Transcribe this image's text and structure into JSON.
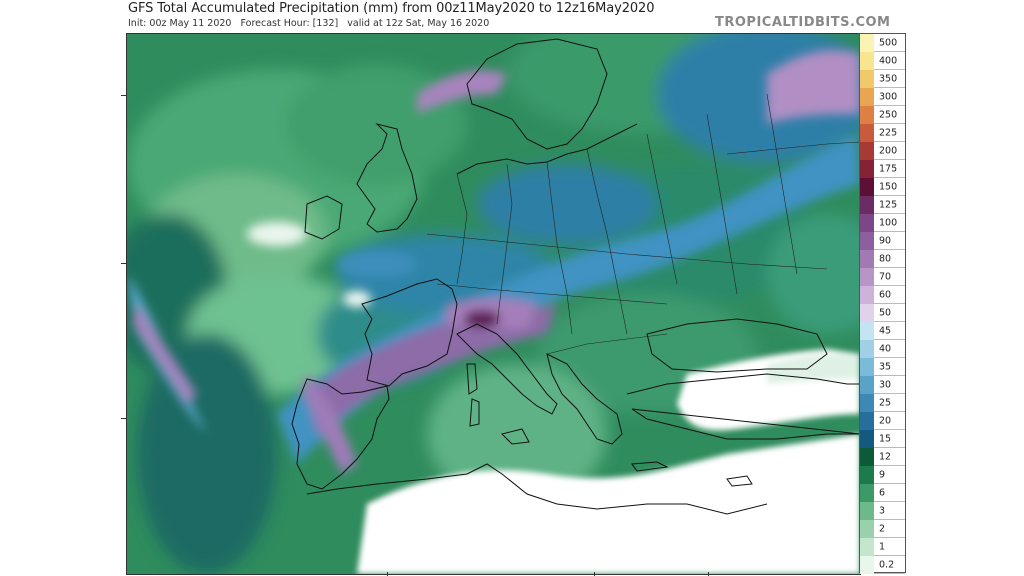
{
  "header": {
    "title": "GFS Total Accumulated Precipitation (mm) from 00z11May2020 to 12z16May2020",
    "subtitle": "Init: 00z May 11 2020   Forecast Hour: [132]   valid at 12z Sat, May 16 2020",
    "brand": "TROPICALTIDBITS.COM"
  },
  "map": {
    "region": "Europe and Mediterranean",
    "variable": "Total Accumulated Precipitation (mm)",
    "colors": {
      "ocean_base": "#2e8a5c",
      "dry_land": "#ffffff",
      "coast": "#111111",
      "border": "#222222"
    }
  },
  "colorbar": {
    "levels": [
      {
        "label": "500",
        "color": "#faf3b4"
      },
      {
        "label": "400",
        "color": "#f7e58f"
      },
      {
        "label": "350",
        "color": "#f2c96a"
      },
      {
        "label": "300",
        "color": "#eaa552"
      },
      {
        "label": "250",
        "color": "#de7f44"
      },
      {
        "label": "225",
        "color": "#c85b3c"
      },
      {
        "label": "200",
        "color": "#a83a36"
      },
      {
        "label": "175",
        "color": "#852233"
      },
      {
        "label": "150",
        "color": "#5e0f36"
      },
      {
        "label": "125",
        "color": "#6b2c66"
      },
      {
        "label": "100",
        "color": "#7d4686"
      },
      {
        "label": "90",
        "color": "#8e5f9e"
      },
      {
        "label": "80",
        "color": "#a27ab3"
      },
      {
        "label": "70",
        "color": "#b796c6"
      },
      {
        "label": "60",
        "color": "#cdb3d9"
      },
      {
        "label": "50",
        "color": "#e2d1ea"
      },
      {
        "label": "45",
        "color": "#c4e4f1"
      },
      {
        "label": "40",
        "color": "#9fd0e6"
      },
      {
        "label": "35",
        "color": "#7bbad8"
      },
      {
        "label": "30",
        "color": "#5aa2c8"
      },
      {
        "label": "25",
        "color": "#3e88b5"
      },
      {
        "label": "20",
        "color": "#276e9c"
      },
      {
        "label": "15",
        "color": "#145a80"
      },
      {
        "label": "12",
        "color": "#0d5a3a"
      },
      {
        "label": "9",
        "color": "#1d7a4d"
      },
      {
        "label": "6",
        "color": "#3d9a66"
      },
      {
        "label": "3",
        "color": "#6db98a"
      },
      {
        "label": "2",
        "color": "#98d1ab"
      },
      {
        "label": "1",
        "color": "#c3e6cd"
      },
      {
        "label": "0.2",
        "color": "#e9f6ec"
      }
    ]
  }
}
